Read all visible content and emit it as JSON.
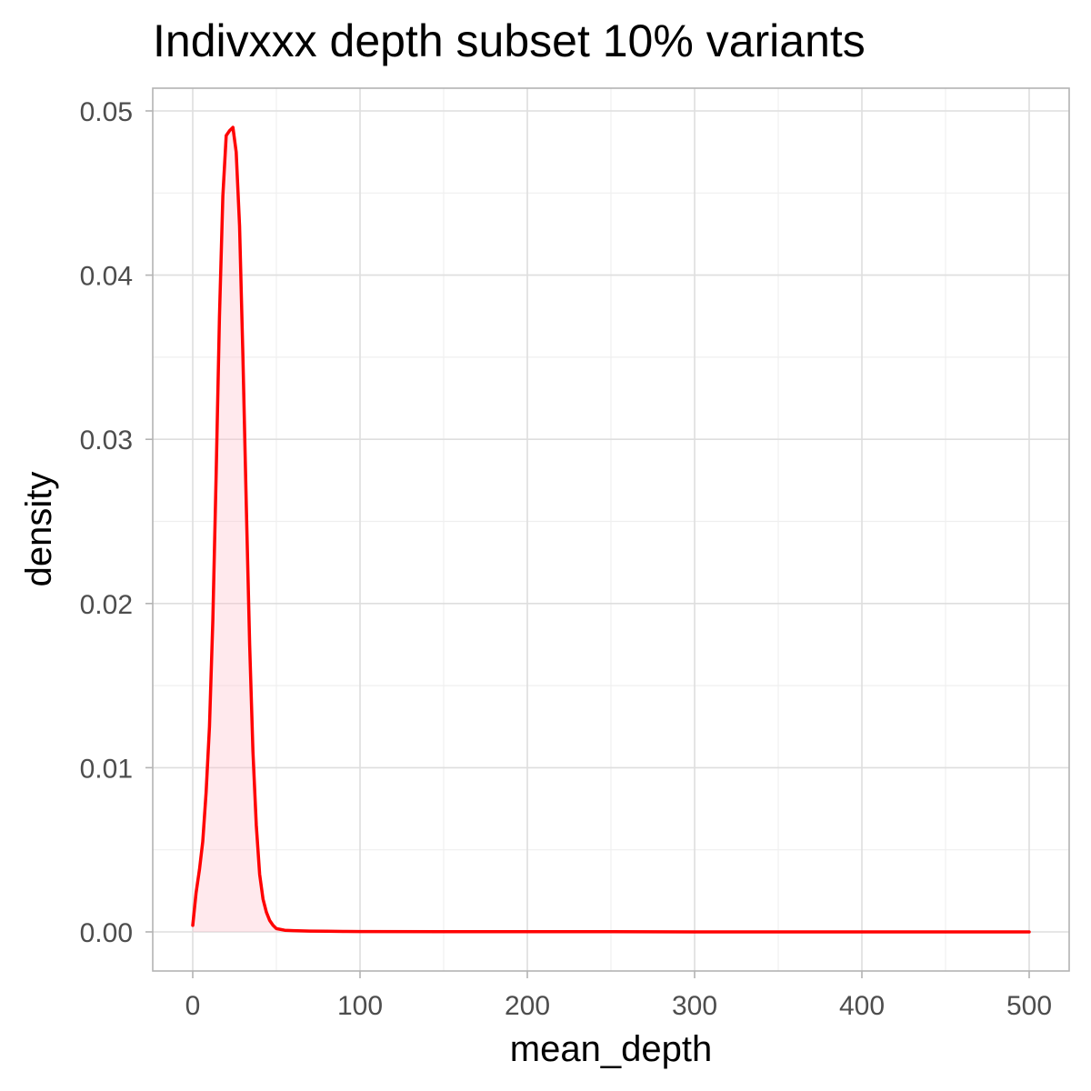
{
  "chart_data": {
    "type": "area",
    "title": "Indivxxx depth subset 10% variants",
    "xlabel": "mean_depth",
    "ylabel": "density",
    "xlim": [
      0,
      500
    ],
    "ylim": [
      0,
      0.05
    ],
    "x_ticks": [
      0,
      100,
      200,
      300,
      400,
      500
    ],
    "y_ticks": [
      0.0,
      0.01,
      0.02,
      0.03,
      0.04,
      0.05
    ],
    "x_tick_labels": [
      "0",
      "100",
      "200",
      "300",
      "400",
      "500"
    ],
    "y_tick_labels": [
      "0.00",
      "0.01",
      "0.02",
      "0.03",
      "0.04",
      "0.05"
    ],
    "grid": true,
    "legend": "none",
    "series": [
      {
        "line_color": "#ff0000",
        "fill_color": "#ffc0cb",
        "x": [
          0,
          2,
          4,
          6,
          8,
          10,
          12,
          14,
          16,
          18,
          20,
          22,
          24,
          26,
          28,
          30,
          32,
          34,
          36,
          38,
          40,
          42,
          44,
          46,
          48,
          50,
          55,
          60,
          65,
          70,
          80,
          90,
          100,
          150,
          200,
          250,
          300,
          350,
          400,
          450,
          500
        ],
        "y": [
          0.0004,
          0.0024,
          0.0038,
          0.0055,
          0.0085,
          0.0125,
          0.019,
          0.028,
          0.0375,
          0.0448,
          0.0485,
          0.0488,
          0.049,
          0.0475,
          0.043,
          0.035,
          0.026,
          0.0175,
          0.011,
          0.0065,
          0.0035,
          0.002,
          0.0012,
          0.0007,
          0.0004,
          0.0002,
          0.0001,
          8e-05,
          6e-05,
          5e-05,
          4e-05,
          3e-05,
          2e-05,
          1e-05,
          1e-05,
          1e-05,
          0.0,
          0.0,
          0.0,
          0.0,
          0.0
        ]
      }
    ],
    "colors": {
      "panel_border": "#b3b3b3",
      "grid_major": "#dedede",
      "grid_minor": "#efefef",
      "tick_mark": "#b3b3b3"
    }
  }
}
